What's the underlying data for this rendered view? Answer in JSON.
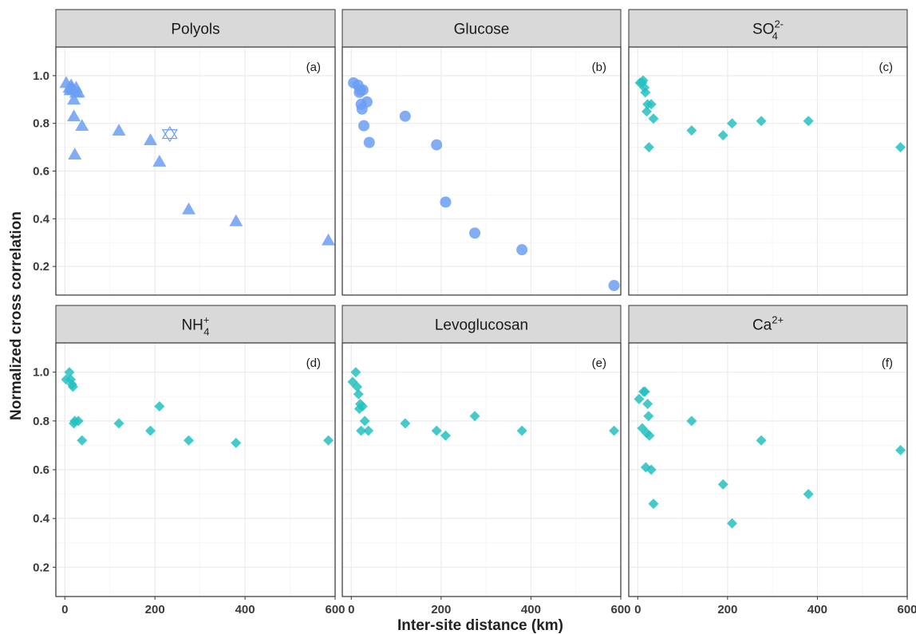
{
  "chart_data": {
    "type": "scatter",
    "layout": "facet-grid",
    "xlabel": "Inter-site distance (km)",
    "ylabel": "Normalized cross correlation",
    "xlim": [
      -20,
      600
    ],
    "ylim": [
      0.08,
      1.12
    ],
    "xticks": [
      0,
      200,
      400,
      600
    ],
    "yticks": [
      0.2,
      0.4,
      0.6,
      0.8,
      1.0
    ],
    "ytick_labels": [
      "0.2",
      "0.4",
      "0.6",
      "0.8",
      "1.0"
    ],
    "grid": true,
    "colors": {
      "saccharide": "#6b9ef4",
      "ion": "#23c1c1",
      "strip_bg": "#d9d9d9",
      "grid": "#ebebeb",
      "border": "#333333"
    },
    "panels": [
      {
        "id": "a",
        "title": "Polyols",
        "tag": "(a)",
        "marker": "triangle",
        "color": "#6b9ef4",
        "x": [
          3,
          10,
          12,
          14,
          16,
          18,
          20,
          20,
          22,
          25,
          30,
          38,
          25,
          120,
          190,
          210,
          275,
          380,
          585
        ],
        "y": [
          0.97,
          0.95,
          0.94,
          0.96,
          0.95,
          0.94,
          0.9,
          0.83,
          0.67,
          0.93,
          0.93,
          0.79,
          0.95,
          0.77,
          0.73,
          0.64,
          0.44,
          0.39,
          0.31
        ],
        "highlight_marker": "hexagram",
        "highlight": [
          {
            "x": 233,
            "y": 0.755
          }
        ]
      },
      {
        "id": "b",
        "title": "Glucose",
        "tag": "(b)",
        "marker": "circle",
        "color": "#6b9ef4",
        "x": [
          5,
          15,
          18,
          20,
          22,
          24,
          26,
          28,
          35,
          40,
          120,
          190,
          210,
          275,
          380,
          585
        ],
        "y": [
          0.97,
          0.96,
          0.93,
          0.94,
          0.88,
          0.86,
          0.94,
          0.79,
          0.89,
          0.72,
          0.83,
          0.71,
          0.47,
          0.34,
          0.27,
          0.12
        ],
        "highlight_marker": null,
        "highlight": []
      },
      {
        "id": "c",
        "title": "SO",
        "title_sub": "4",
        "title_sup": "2-",
        "tag": "(c)",
        "marker": "diamond",
        "color": "#23c1c1",
        "x": [
          5,
          10,
          12,
          15,
          17,
          20,
          22,
          25,
          30,
          35,
          120,
          190,
          210,
          275,
          380,
          585
        ],
        "y": [
          0.97,
          0.97,
          0.98,
          0.95,
          0.93,
          0.85,
          0.88,
          0.7,
          0.88,
          0.82,
          0.77,
          0.75,
          0.8,
          0.81,
          0.81,
          0.7
        ],
        "highlight_marker": null,
        "highlight": []
      },
      {
        "id": "d",
        "title": "NH",
        "title_sub": "4",
        "title_sup": "+",
        "tag": "(d)",
        "marker": "diamond",
        "color": "#23c1c1",
        "x": [
          3,
          10,
          13,
          16,
          18,
          20,
          22,
          30,
          38,
          120,
          190,
          210,
          275,
          380,
          585
        ],
        "y": [
          0.97,
          1.0,
          0.97,
          0.95,
          0.94,
          0.79,
          0.8,
          0.8,
          0.72,
          0.79,
          0.76,
          0.86,
          0.72,
          0.71,
          0.72
        ],
        "highlight_marker": null,
        "highlight": []
      },
      {
        "id": "e",
        "title": "Levoglucosan",
        "tag": "(e)",
        "marker": "diamond",
        "color": "#23c1c1",
        "x": [
          3,
          10,
          13,
          16,
          18,
          20,
          22,
          25,
          30,
          38,
          120,
          190,
          210,
          275,
          380,
          585
        ],
        "y": [
          0.96,
          1.0,
          0.94,
          0.91,
          0.85,
          0.87,
          0.76,
          0.86,
          0.8,
          0.76,
          0.79,
          0.76,
          0.74,
          0.82,
          0.76,
          0.76
        ],
        "highlight_marker": null,
        "highlight": []
      },
      {
        "id": "f",
        "title": "Ca",
        "title_sup": "2+",
        "tag": "(f)",
        "marker": "diamond",
        "color": "#23c1c1",
        "x": [
          3,
          10,
          13,
          16,
          18,
          20,
          22,
          24,
          26,
          30,
          35,
          120,
          190,
          210,
          275,
          380,
          585
        ],
        "y": [
          0.89,
          0.77,
          0.92,
          0.92,
          0.61,
          0.75,
          0.87,
          0.82,
          0.74,
          0.6,
          0.46,
          0.8,
          0.54,
          0.38,
          0.72,
          0.5,
          0.68
        ],
        "highlight_marker": null,
        "highlight": []
      }
    ]
  }
}
